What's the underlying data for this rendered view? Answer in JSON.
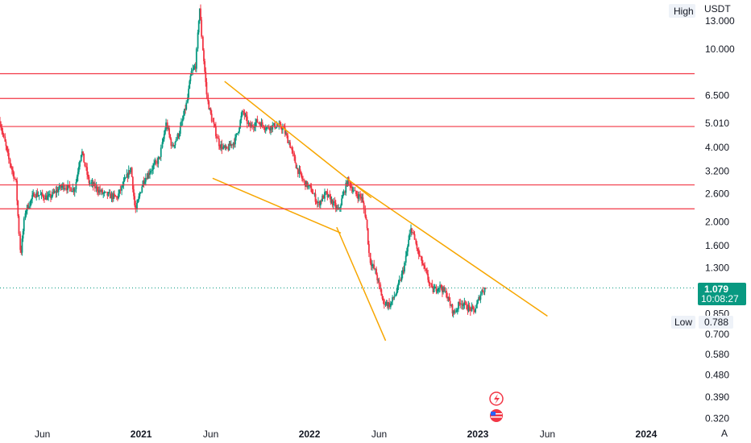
{
  "chart_data": {
    "type": "candlestick",
    "currency": "USDT",
    "y_scale": "log",
    "ylim": [
      0.3,
      15.8
    ],
    "y_ticks": [
      "13.000",
      "10.000",
      "6.500",
      "5.010",
      "4.000",
      "3.200",
      "2.600",
      "2.000",
      "1.600",
      "1.300",
      "0.850",
      "0.700",
      "0.580",
      "0.480",
      "0.390",
      "0.320"
    ],
    "x_range": [
      "2020-03-01",
      "2024-04-15"
    ],
    "x_ticks": [
      {
        "label": "Jun",
        "date": "2020-06-01",
        "major": false
      },
      {
        "label": "2021",
        "date": "2021-01-01",
        "major": true
      },
      {
        "label": "Jun",
        "date": "2021-06-01",
        "major": false
      },
      {
        "label": "2022",
        "date": "2022-01-01",
        "major": true
      },
      {
        "label": "Jun",
        "date": "2022-06-01",
        "major": false
      },
      {
        "label": "2023",
        "date": "2023-01-01",
        "major": true
      },
      {
        "label": "Jun",
        "date": "2023-06-01",
        "major": false
      },
      {
        "label": "2024",
        "date": "2024-01-01",
        "major": true
      }
    ],
    "high_label": "High",
    "low_label": "Low",
    "low_value": "0.788",
    "last_price": "1.079",
    "countdown": "10:08:27",
    "last_price_value": 1.079,
    "horizontal_levels": [
      "7.947",
      "6.311",
      "4.859",
      "2.820",
      "2.256"
    ],
    "level_values": [
      7.947,
      6.311,
      4.859,
      2.82,
      2.256
    ],
    "level_color": "#f23645",
    "up_color": "#089981",
    "down_color": "#f23645",
    "trendline_color": "#f7a600",
    "trendlines": [
      {
        "from": {
          "date": "2021-07-01",
          "price": 7.4
        },
        "to": {
          "date": "2022-05-15",
          "price": 2.5
        }
      },
      {
        "from": {
          "date": "2022-04-01",
          "price": 2.9
        },
        "to": {
          "date": "2023-06-01",
          "price": 0.83
        }
      },
      {
        "from": {
          "date": "2021-06-05",
          "price": 3.0
        },
        "to": {
          "date": "2022-03-10",
          "price": 1.8
        }
      },
      {
        "from": {
          "date": "2022-03-01",
          "price": 1.9
        },
        "to": {
          "date": "2022-06-15",
          "price": 0.66
        }
      }
    ],
    "price_path": [
      [
        "2020-03-01",
        5.1
      ],
      [
        "2020-03-20",
        3.6
      ],
      [
        "2020-04-05",
        2.9
      ],
      [
        "2020-04-15",
        1.45
      ],
      [
        "2020-04-25",
        2.2
      ],
      [
        "2020-05-15",
        2.6
      ],
      [
        "2020-06-15",
        2.5
      ],
      [
        "2020-07-15",
        2.8
      ],
      [
        "2020-08-10",
        2.7
      ],
      [
        "2020-08-25",
        3.9
      ],
      [
        "2020-09-10",
        2.9
      ],
      [
        "2020-10-10",
        2.6
      ],
      [
        "2020-11-10",
        2.5
      ],
      [
        "2020-12-10",
        3.3
      ],
      [
        "2020-12-20",
        2.2
      ],
      [
        "2021-01-05",
        2.9
      ],
      [
        "2021-01-25",
        3.3
      ],
      [
        "2021-02-10",
        3.6
      ],
      [
        "2021-02-25",
        5.0
      ],
      [
        "2021-03-10",
        4.0
      ],
      [
        "2021-03-25",
        4.6
      ],
      [
        "2021-04-10",
        6.0
      ],
      [
        "2021-04-20",
        8.0
      ],
      [
        "2021-04-30",
        8.6
      ],
      [
        "2021-05-08",
        15.0
      ],
      [
        "2021-05-15",
        10.0
      ],
      [
        "2021-05-25",
        6.2
      ],
      [
        "2021-06-05",
        5.1
      ],
      [
        "2021-06-20",
        4.1
      ],
      [
        "2021-07-05",
        3.9
      ],
      [
        "2021-07-25",
        4.3
      ],
      [
        "2021-08-10",
        5.6
      ],
      [
        "2021-08-25",
        4.8
      ],
      [
        "2021-09-10",
        5.1
      ],
      [
        "2021-10-01",
        4.8
      ],
      [
        "2021-10-20",
        4.9
      ],
      [
        "2021-11-05",
        4.8
      ],
      [
        "2021-11-20",
        4.1
      ],
      [
        "2021-12-05",
        3.3
      ],
      [
        "2021-12-20",
        2.9
      ],
      [
        "2022-01-05",
        2.7
      ],
      [
        "2022-01-20",
        2.35
      ],
      [
        "2022-02-05",
        2.6
      ],
      [
        "2022-02-20",
        2.4
      ],
      [
        "2022-03-05",
        2.2
      ],
      [
        "2022-03-25",
        2.95
      ],
      [
        "2022-04-10",
        2.6
      ],
      [
        "2022-04-25",
        2.5
      ],
      [
        "2022-05-05",
        2.0
      ],
      [
        "2022-05-12",
        1.4
      ],
      [
        "2022-05-25",
        1.25
      ],
      [
        "2022-06-10",
        0.95
      ],
      [
        "2022-06-25",
        0.92
      ],
      [
        "2022-07-10",
        1.05
      ],
      [
        "2022-07-25",
        1.3
      ],
      [
        "2022-08-10",
        1.9
      ],
      [
        "2022-08-25",
        1.5
      ],
      [
        "2022-09-10",
        1.25
      ],
      [
        "2022-09-25",
        1.05
      ],
      [
        "2022-10-10",
        1.1
      ],
      [
        "2022-10-25",
        1.02
      ],
      [
        "2022-11-10",
        0.85
      ],
      [
        "2022-11-25",
        0.95
      ],
      [
        "2022-12-10",
        0.9
      ],
      [
        "2022-12-25",
        0.87
      ],
      [
        "2023-01-10",
        1.05
      ],
      [
        "2023-01-20",
        1.08
      ]
    ]
  }
}
